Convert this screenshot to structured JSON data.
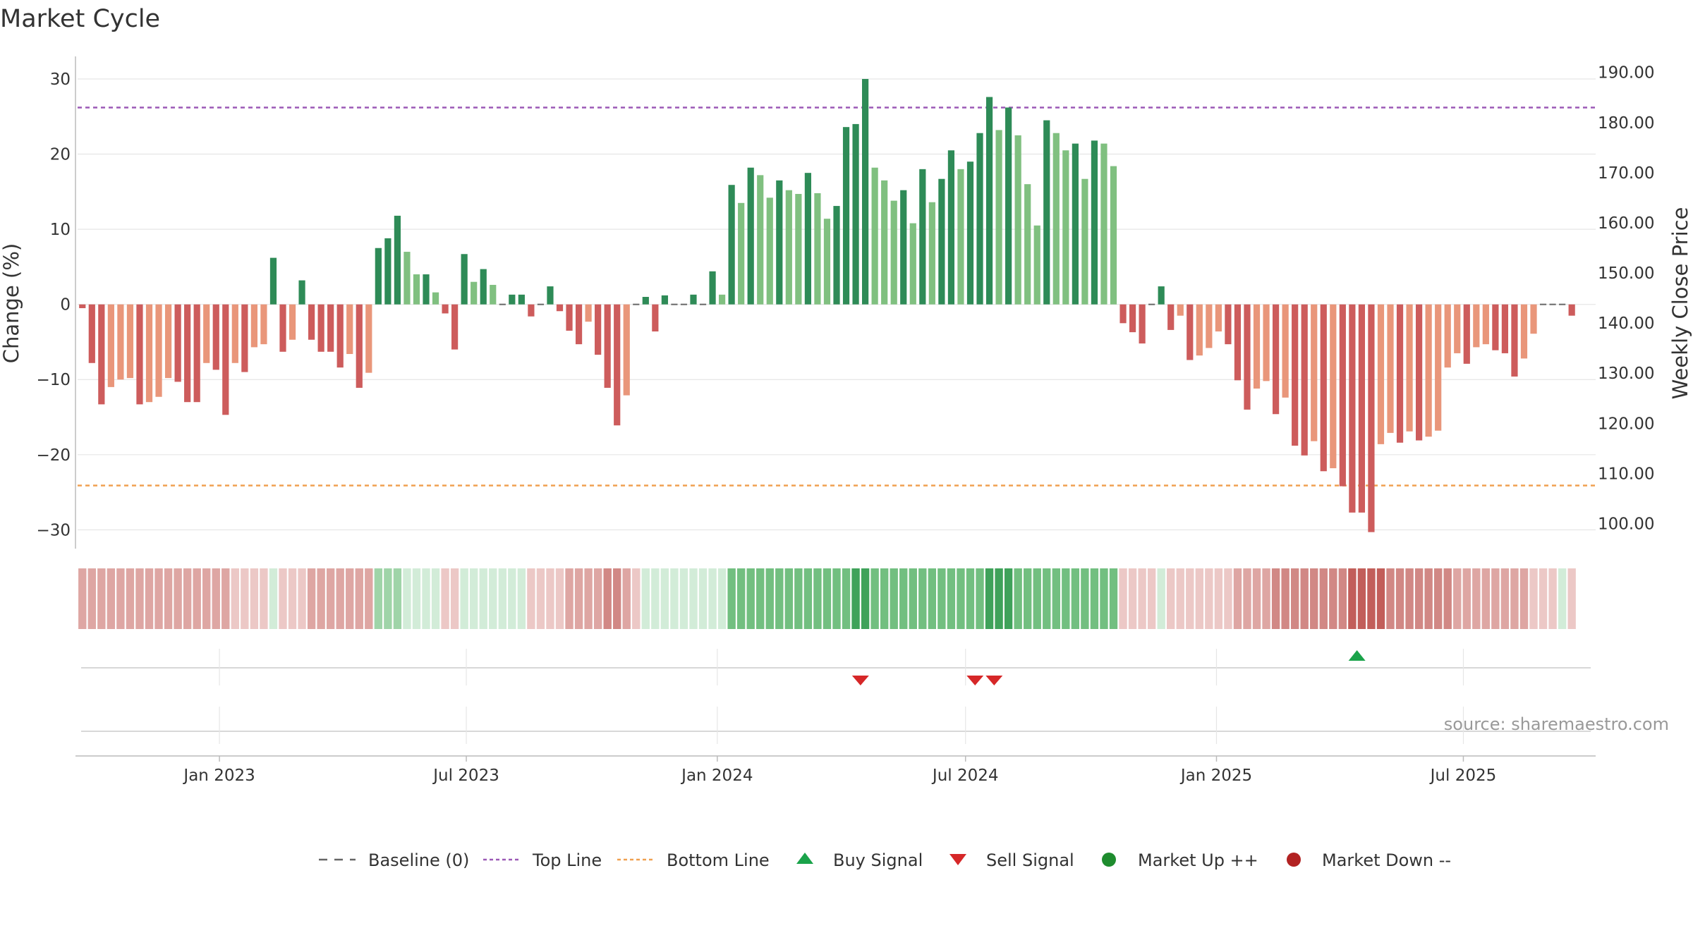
{
  "chart_data": {
    "type": "bar",
    "title": "Market Cycle",
    "ylabel": "Change (%)",
    "y2label": "Weekly Close Price",
    "ylim": [
      -32.5,
      33
    ],
    "y2lim": [
      95.0,
      193.2
    ],
    "yticks": [
      30,
      20,
      10,
      0,
      -10,
      -20,
      -30
    ],
    "yticklabels": [
      "30",
      "20",
      "10",
      "0",
      "−10",
      "−20",
      "−30"
    ],
    "y2ticks": [
      190,
      180,
      170,
      160,
      150,
      140,
      130,
      120,
      110,
      100
    ],
    "y2ticklabels": [
      "190.00",
      "180.00",
      "170.00",
      "160.00",
      "150.00",
      "140.00",
      "130.00",
      "120.00",
      "110.00",
      "100.00"
    ],
    "x_start": "2022-09-19",
    "x_end": "2025-10-06",
    "xticks": [
      "2023-01-01",
      "2023-07-01",
      "2024-01-01",
      "2024-07-01",
      "2025-01-01",
      "2025-07-01"
    ],
    "xticklabels": [
      "Jan 2023",
      "Jul 2023",
      "Jan 2024",
      "Jul 2024",
      "Jan 2025",
      "Jul 2025"
    ],
    "top_line": 26.2,
    "bottom_line": -24.1,
    "baseline": 0,
    "week_start": "2022-09-19",
    "series": [
      {
        "values": [
          -0.5,
          -7.8,
          -13.3,
          -11.0,
          -10.0,
          -9.8,
          -13.3,
          -13.0,
          -12.3,
          -9.8,
          -10.3,
          -13.0,
          -13.0,
          -7.8,
          -8.7,
          -14.7,
          -7.8,
          -9.0,
          -5.7,
          -5.3,
          6.2,
          -6.3,
          -4.7,
          3.2,
          -4.7,
          -6.3,
          -6.3,
          -8.4,
          -6.6,
          -11.1,
          -9.1,
          7.5,
          8.8,
          11.8,
          7.0,
          4.0,
          4.0,
          1.6,
          -1.2,
          -6.0,
          6.7,
          3.0,
          4.7,
          2.6,
          0,
          1.3,
          1.3,
          -1.6,
          0,
          2.4,
          -0.9,
          -3.5,
          -5.3,
          -2.3,
          -6.7,
          -11.1,
          -16.1,
          -12.1,
          0,
          1.0,
          -3.6,
          1.2,
          0,
          0,
          1.3,
          0,
          4.4,
          1.3,
          15.9,
          13.5,
          18.2,
          17.2,
          14.2,
          16.5,
          15.2,
          14.7,
          17.5,
          14.8,
          11.4,
          13.1,
          23.6,
          24.0,
          30.0,
          18.2,
          16.5,
          13.8,
          15.2,
          10.8,
          18.0,
          13.6,
          16.7,
          20.5,
          18.0,
          19.0,
          22.8,
          27.6,
          23.2,
          26.2,
          22.5,
          16.0,
          10.5,
          24.5,
          22.8,
          20.5,
          21.4,
          16.7,
          21.8,
          21.4,
          18.4,
          -2.5,
          -3.7,
          -5.2,
          0,
          2.4,
          -3.4,
          -1.5,
          -7.4,
          -6.8,
          -5.8,
          -3.6,
          -5.3,
          -10.1,
          -14.0,
          -11.2,
          -10.2,
          -14.6,
          -12.4,
          -18.8,
          -20.1,
          -18.2,
          -22.2,
          -21.8,
          -24.2,
          -27.7,
          -27.7,
          -30.3,
          -18.6,
          -17.1,
          -18.4,
          -16.9,
          -18.1,
          -17.6,
          -16.8,
          -8.4,
          -6.5,
          -7.9,
          -5.7,
          -5.3,
          -6.1,
          -6.5,
          -9.6,
          -7.2,
          -3.9,
          0,
          0,
          0,
          -1.5
        ]
      }
    ],
    "heat_strip": {
      "levels": [
        -2,
        -2,
        -2,
        -2,
        -2,
        -2,
        -2,
        -2,
        -2,
        -2,
        -2,
        -2,
        -2,
        -2,
        -2,
        -2,
        -1,
        -1,
        -1,
        -1,
        1,
        -1,
        -1,
        -1,
        -2,
        -2,
        -2,
        -2,
        -2,
        -2,
        -2,
        2,
        2,
        2,
        1,
        1,
        1,
        1,
        -1,
        -1,
        1,
        1,
        1,
        1,
        1,
        1,
        1,
        -1,
        -1,
        -1,
        -1,
        -2,
        -2,
        -2,
        -2,
        -3,
        -3,
        -2,
        -1,
        1,
        1,
        1,
        1,
        1,
        1,
        1,
        1,
        1,
        3,
        3,
        3,
        3,
        3,
        3,
        3,
        3,
        3,
        3,
        3,
        3,
        3,
        4,
        4,
        3,
        3,
        3,
        3,
        3,
        3,
        3,
        3,
        3,
        3,
        3,
        3,
        4,
        4,
        4,
        3,
        3,
        3,
        3,
        3,
        3,
        3,
        3,
        3,
        3,
        3,
        -1,
        -1,
        -1,
        -1,
        1,
        -1,
        -1,
        -1,
        -1,
        -1,
        -1,
        -1,
        -2,
        -2,
        -2,
        -2,
        -3,
        -3,
        -3,
        -3,
        -3,
        -3,
        -3,
        -3,
        -4,
        -4,
        -4,
        -4,
        -3,
        -3,
        -3,
        -3,
        -3,
        -3,
        -3,
        -2,
        -2,
        -2,
        -2,
        -2,
        -2,
        -2,
        -2,
        -1,
        -1,
        -1,
        1,
        -1
      ]
    },
    "signals": {
      "buy": [
        "2025-04-14"
      ],
      "sell": [
        "2024-04-15",
        "2024-07-08",
        "2024-07-22"
      ]
    },
    "legend": {
      "placement": "bottom",
      "items": [
        "Baseline (0)",
        "Top Line",
        "Bottom Line",
        "Buy Signal",
        "Sell Signal",
        "Market Up ++",
        "Market Down --"
      ]
    },
    "source_text": "source: sharemaestro.com",
    "colors": {
      "up_dark": "#2e8b57",
      "up_light": "#80c080",
      "down_dark": "#cd5c5c",
      "down_light": "#e9967a",
      "top_line": "#9b59b6",
      "bottom_line": "#f0a050",
      "baseline": "#666666",
      "buy": "#1aa34a",
      "sell": "#d62728",
      "market_up": "#1e8c2e",
      "market_down": "#b22222",
      "grid": "#e6e6e6",
      "axis": "#bbbbbb"
    }
  }
}
